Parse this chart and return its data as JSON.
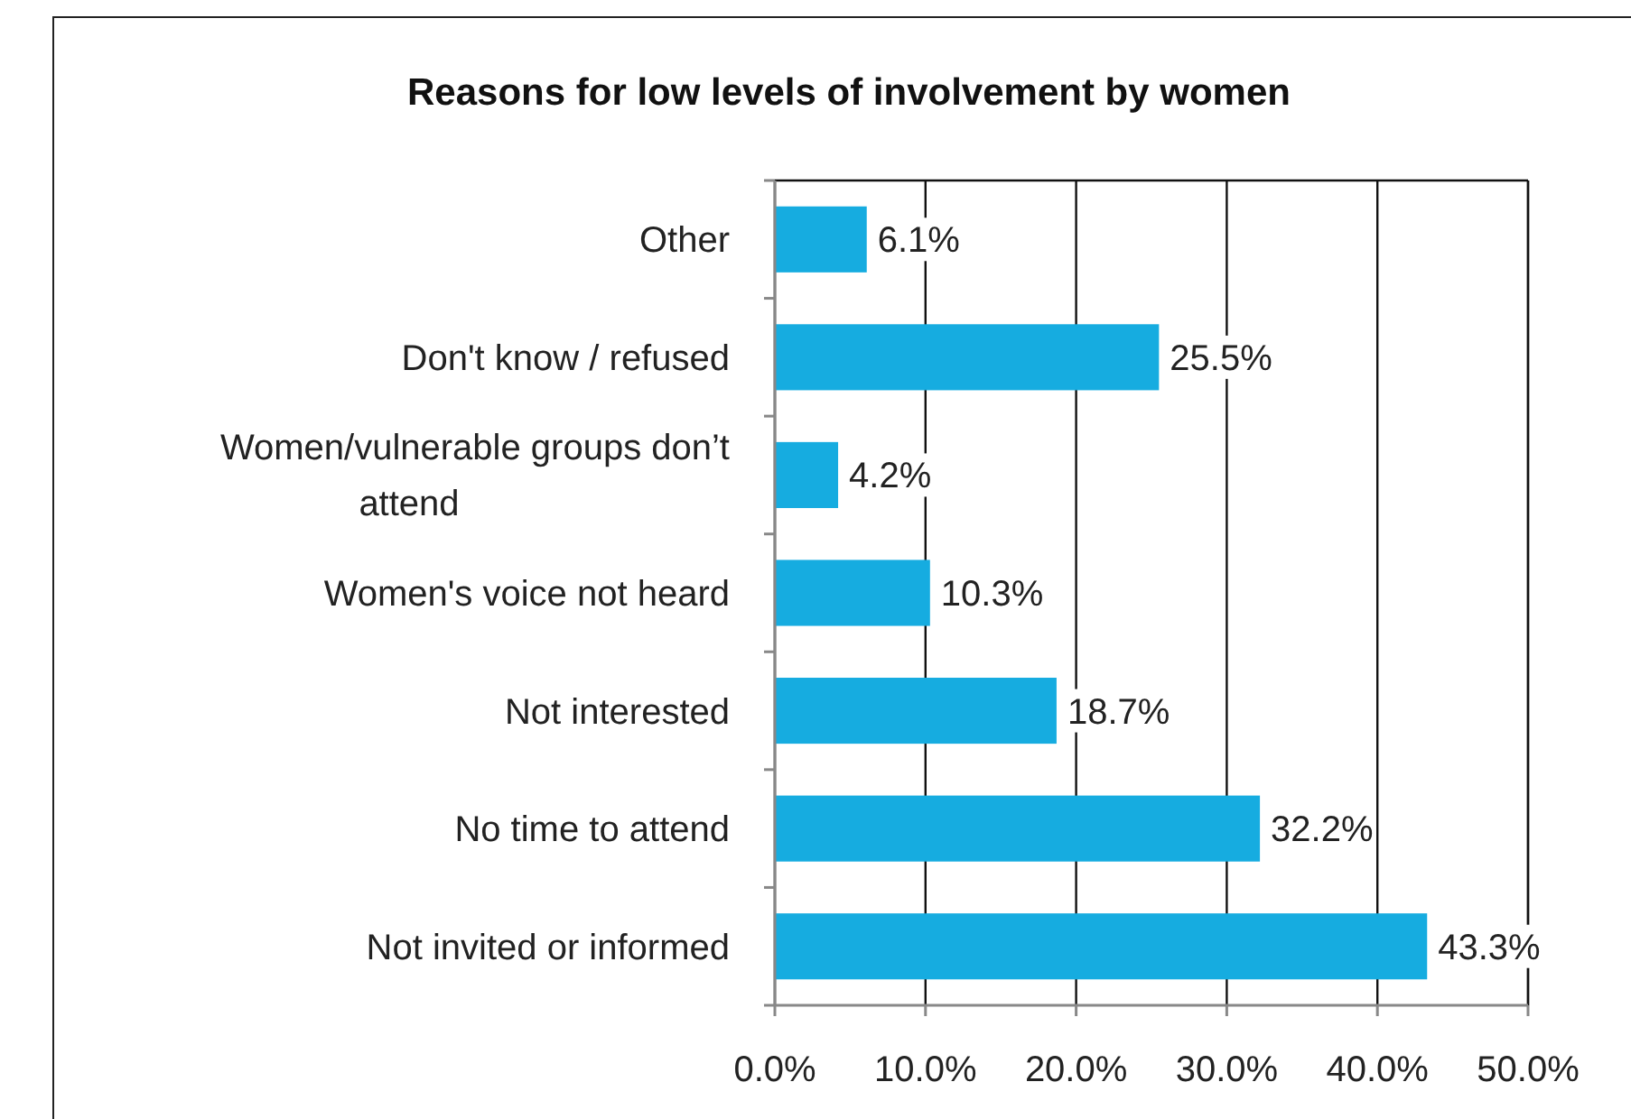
{
  "chart_data": {
    "type": "bar",
    "orientation": "horizontal",
    "title": "Reasons for low levels of involvement by women",
    "categories": [
      "Other",
      "Don't know / refused",
      "Women/vulnerable groups don’t attend",
      "Women's voice not heard",
      "Not interested",
      "No time to attend",
      "Not invited or informed"
    ],
    "values": [
      6.1,
      25.5,
      4.2,
      10.3,
      18.7,
      32.2,
      43.3
    ],
    "value_labels": [
      "6.1%",
      "25.5%",
      "4.2%",
      "10.3%",
      "18.7%",
      "32.2%",
      "43.3%"
    ],
    "color": "#16ace0",
    "xlim": [
      0,
      50
    ],
    "xticks": [
      {
        "value": 0,
        "label": "0.0%"
      },
      {
        "value": 10,
        "label": "10.0%"
      },
      {
        "value": 20,
        "label": "20.0%"
      },
      {
        "value": 30,
        "label": "30.0%"
      },
      {
        "value": 40,
        "label": "40.0%"
      },
      {
        "value": 50,
        "label": "50.0%"
      }
    ],
    "grid": "x"
  }
}
